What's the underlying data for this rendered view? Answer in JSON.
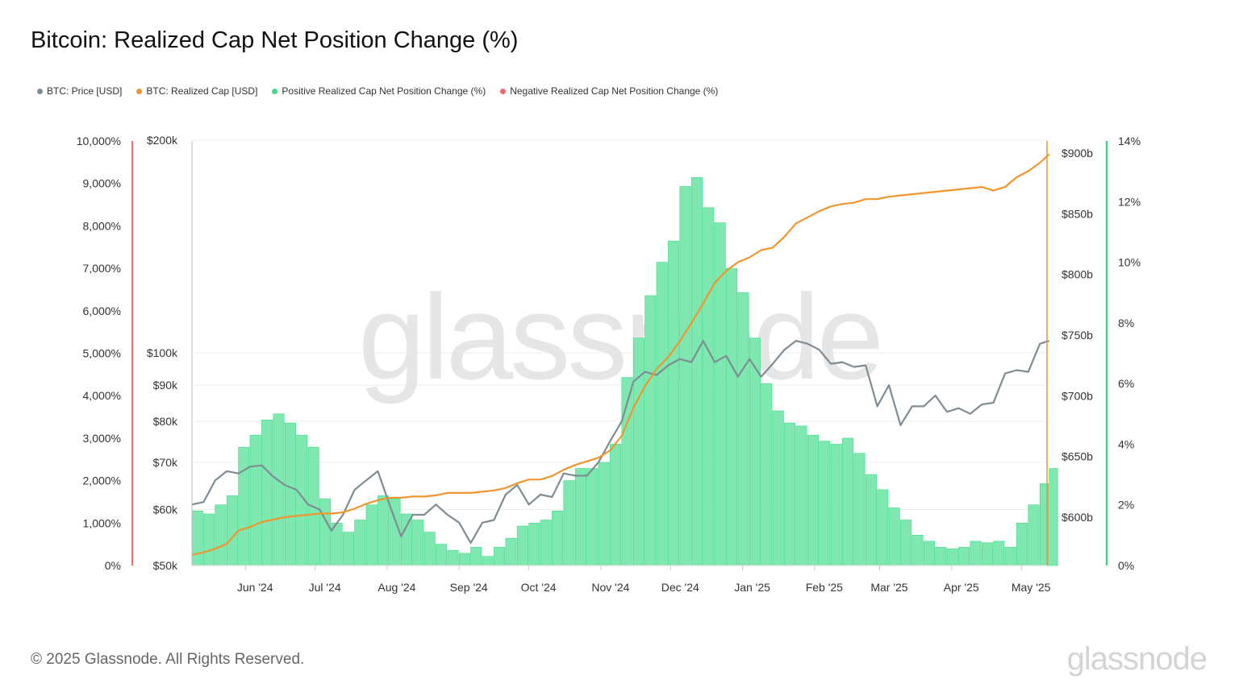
{
  "title": "Bitcoin: Realized Cap Net Position Change (%)",
  "footer": "© 2025 Glassnode. All Rights Reserved.",
  "logo": "glassnode",
  "watermark": "glassnode",
  "legend": [
    {
      "label": "BTC: Price [USD]",
      "color": "#7f8c94"
    },
    {
      "label": "BTC: Realized Cap [USD]",
      "color": "#f0962e"
    },
    {
      "label": "Positive Realized Cap Net Position Change (%)",
      "color": "#3ddc84"
    },
    {
      "label": "Negative Realized Cap Net Position Change (%)",
      "color": "#ee6b6e"
    }
  ],
  "chart_data": {
    "type": "bar+line",
    "x_range": [
      "2024-05-09",
      "2025-05-13"
    ],
    "x_ticks": [
      "Jun '24",
      "Jul '24",
      "Aug '24",
      "Sep '24",
      "Oct '24",
      "Nov '24",
      "Dec '24",
      "Jan '25",
      "Feb '25",
      "Mar '25",
      "Apr '25",
      "May '25"
    ],
    "axes": {
      "left_negative_pct": {
        "ticks": [
          "0%",
          "1,000%",
          "2,000%",
          "3,000%",
          "4,000%",
          "5,000%",
          "6,000%",
          "7,000%",
          "8,000%",
          "9,000%",
          "10,000%"
        ],
        "range": [
          0,
          10000
        ],
        "color": "#ee6b6e"
      },
      "left_price": {
        "scale": "log",
        "ticks": [
          {
            "v": 50000,
            "label": "$50k"
          },
          {
            "v": 60000,
            "label": "$60k"
          },
          {
            "v": 70000,
            "label": "$70k"
          },
          {
            "v": 80000,
            "label": "$80k"
          },
          {
            "v": 90000,
            "label": "$90k"
          },
          {
            "v": 100000,
            "label": "$100k"
          },
          {
            "v": 200000,
            "label": "$200k"
          }
        ],
        "range": [
          50000,
          200000
        ]
      },
      "right_realized_cap": {
        "ticks": [
          {
            "v": 600,
            "label": "$600b"
          },
          {
            "v": 650,
            "label": "$650b"
          },
          {
            "v": 700,
            "label": "$700b"
          },
          {
            "v": 750,
            "label": "$750b"
          },
          {
            "v": 800,
            "label": "$800b"
          },
          {
            "v": 850,
            "label": "$850b"
          },
          {
            "v": 900,
            "label": "$900b"
          }
        ],
        "unit": "billion USD",
        "color": "#f0962e"
      },
      "right_positive_pct": {
        "ticks": [
          "0%",
          "2%",
          "4%",
          "6%",
          "8%",
          "10%",
          "12%",
          "14%"
        ],
        "range": [
          0,
          14
        ],
        "color": "#3ddc84"
      }
    },
    "dates": [
      "2024-05-09",
      "2024-05-14",
      "2024-05-19",
      "2024-05-24",
      "2024-05-29",
      "2024-06-03",
      "2024-06-08",
      "2024-06-13",
      "2024-06-18",
      "2024-06-23",
      "2024-06-28",
      "2024-07-03",
      "2024-07-08",
      "2024-07-13",
      "2024-07-18",
      "2024-07-23",
      "2024-07-28",
      "2024-08-02",
      "2024-08-07",
      "2024-08-12",
      "2024-08-17",
      "2024-08-22",
      "2024-08-27",
      "2024-09-01",
      "2024-09-06",
      "2024-09-11",
      "2024-09-16",
      "2024-09-21",
      "2024-09-26",
      "2024-10-01",
      "2024-10-06",
      "2024-10-11",
      "2024-10-16",
      "2024-10-21",
      "2024-10-26",
      "2024-10-31",
      "2024-11-05",
      "2024-11-10",
      "2024-11-15",
      "2024-11-20",
      "2024-11-25",
      "2024-11-30",
      "2024-12-05",
      "2024-12-10",
      "2024-12-15",
      "2024-12-20",
      "2024-12-25",
      "2024-12-30",
      "2025-01-04",
      "2025-01-09",
      "2025-01-14",
      "2025-01-19",
      "2025-01-24",
      "2025-01-29",
      "2025-02-03",
      "2025-02-08",
      "2025-02-13",
      "2025-02-18",
      "2025-02-23",
      "2025-02-28",
      "2025-03-05",
      "2025-03-10",
      "2025-03-15",
      "2025-03-20",
      "2025-03-25",
      "2025-03-30",
      "2025-04-04",
      "2025-04-09",
      "2025-04-14",
      "2025-04-19",
      "2025-04-24",
      "2025-04-29",
      "2025-05-04",
      "2025-05-09",
      "2025-05-13"
    ],
    "series": [
      {
        "name": "BTC: Price [USD]",
        "type": "line",
        "axis": "left_price",
        "color": "#7f8c94",
        "values": [
          61000,
          61500,
          66000,
          68000,
          67500,
          69000,
          69300,
          66800,
          65000,
          64000,
          61000,
          60000,
          56000,
          59000,
          64000,
          66000,
          68000,
          61000,
          55000,
          59000,
          59000,
          61000,
          59000,
          57500,
          53800,
          57500,
          58000,
          63000,
          65000,
          61000,
          63000,
          62500,
          67500,
          67000,
          67000,
          70000,
          75000,
          80000,
          91000,
          94000,
          93000,
          96000,
          98000,
          97000,
          104000,
          97000,
          99000,
          92500,
          98000,
          92500,
          96500,
          101000,
          104000,
          103000,
          101000,
          96500,
          97000,
          95500,
          96000,
          84000,
          90000,
          79000,
          84000,
          84000,
          87000,
          82500,
          83500,
          82000,
          84500,
          85000,
          93500,
          94500,
          94000,
          103000,
          104000
        ]
      },
      {
        "name": "BTC: Realized Cap [USD]",
        "type": "line",
        "axis": "right_realized_cap",
        "color": "#f0962e",
        "values": [
          569,
          571,
          574,
          578,
          589,
          592,
          596,
          598,
          600,
          601,
          602,
          603,
          603,
          604,
          607,
          611,
          614,
          616,
          616,
          617,
          617,
          618,
          620,
          620,
          620,
          621,
          622,
          624,
          628,
          631,
          631,
          634,
          639,
          643,
          646,
          649,
          655,
          667,
          690,
          708,
          722,
          732,
          745,
          760,
          776,
          793,
          803,
          810,
          814,
          820,
          822,
          831,
          842,
          847,
          852,
          856,
          858,
          859,
          862,
          862,
          864,
          865,
          866,
          867,
          868,
          869,
          870,
          871,
          872,
          869,
          872,
          880,
          885,
          892,
          899
        ]
      },
      {
        "name": "Positive Realized Cap Net Position Change (%)",
        "type": "bar",
        "axis": "right_positive_pct",
        "color": "#3ddc84",
        "values": [
          1.8,
          1.7,
          2.0,
          2.3,
          3.9,
          4.3,
          4.8,
          5.0,
          4.7,
          4.3,
          3.9,
          2.2,
          1.4,
          1.1,
          1.5,
          2.0,
          2.3,
          2.2,
          1.7,
          1.5,
          1.1,
          0.7,
          0.5,
          0.4,
          0.6,
          0.3,
          0.6,
          0.9,
          1.3,
          1.4,
          1.5,
          1.8,
          2.8,
          3.2,
          3.2,
          3.4,
          4.0,
          6.2,
          7.5,
          8.9,
          10.0,
          10.7,
          12.5,
          12.8,
          11.8,
          11.3,
          9.8,
          9.0,
          7.5,
          6.0,
          5.1,
          4.7,
          4.6,
          4.3,
          4.1,
          4.0,
          4.2,
          3.7,
          3.0,
          2.5,
          1.9,
          1.5,
          1.0,
          0.8,
          0.6,
          0.55,
          0.6,
          0.8,
          0.75,
          0.8,
          0.6,
          1.4,
          2.0,
          2.7,
          3.2
        ]
      }
    ],
    "grid": true,
    "legend_position": "top-left"
  }
}
